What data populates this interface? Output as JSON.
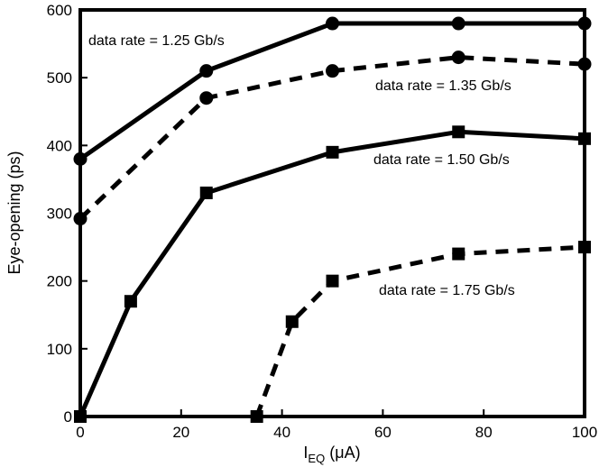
{
  "chart_data": {
    "type": "line",
    "title": "",
    "xlabel": {
      "main": "I",
      "sub": "EQ",
      "unit": " (μA)"
    },
    "ylabel": "Eye-opening (ps)",
    "xlim": [
      0,
      100
    ],
    "ylim": [
      0,
      600
    ],
    "xticks": [
      0,
      20,
      40,
      60,
      80,
      100
    ],
    "yticks": [
      0,
      100,
      200,
      300,
      400,
      500,
      600
    ],
    "grid": false,
    "legend": "none",
    "series": [
      {
        "label": "data rate = 1.25 Gb/s",
        "line": "solid",
        "marker": "circle",
        "x": [
          0,
          25,
          50,
          75,
          100
        ],
        "y": [
          380,
          510,
          580,
          580,
          580
        ]
      },
      {
        "label": "data rate = 1.35 Gb/s",
        "line": "dashed",
        "marker": "circle",
        "x": [
          0,
          25,
          50,
          75,
          100
        ],
        "y": [
          292,
          470,
          510,
          530,
          520
        ]
      },
      {
        "label": "data rate = 1.50 Gb/s",
        "line": "solid",
        "marker": "square",
        "x": [
          0,
          10,
          25,
          50,
          75,
          100
        ],
        "y": [
          0,
          170,
          330,
          390,
          420,
          410
        ]
      },
      {
        "label": "data rate = 1.75 Gb/s",
        "line": "dashed",
        "marker": "square",
        "x": [
          35,
          42,
          50,
          75,
          100
        ],
        "y": [
          0,
          140,
          200,
          240,
          250
        ]
      }
    ]
  }
}
